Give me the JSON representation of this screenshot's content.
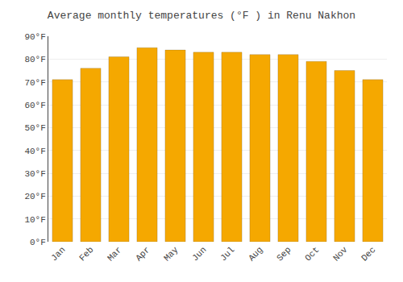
{
  "chart_data": {
    "type": "bar",
    "title": "Average monthly temperatures (°F ) in Renu Nakhon",
    "categories": [
      "Jan",
      "Feb",
      "Mar",
      "Apr",
      "May",
      "Jun",
      "Jul",
      "Aug",
      "Sep",
      "Oct",
      "Nov",
      "Dec"
    ],
    "values": [
      71,
      76,
      81,
      85,
      84,
      83,
      83,
      82,
      82,
      79,
      75,
      71
    ],
    "color": "#F5A800",
    "ylim": [
      0,
      90
    ],
    "yticks": [
      {
        "value": 0,
        "label": "0°F"
      },
      {
        "value": 10,
        "label": "10°F"
      },
      {
        "value": 20,
        "label": "20°F"
      },
      {
        "value": 30,
        "label": "30°F"
      },
      {
        "value": 40,
        "label": "40°F"
      },
      {
        "value": 50,
        "label": "50°F"
      },
      {
        "value": 60,
        "label": "60°F"
      },
      {
        "value": 70,
        "label": "70°F"
      },
      {
        "value": 80,
        "label": "80°F"
      },
      {
        "value": 90,
        "label": "90°F"
      }
    ],
    "grid": true
  }
}
